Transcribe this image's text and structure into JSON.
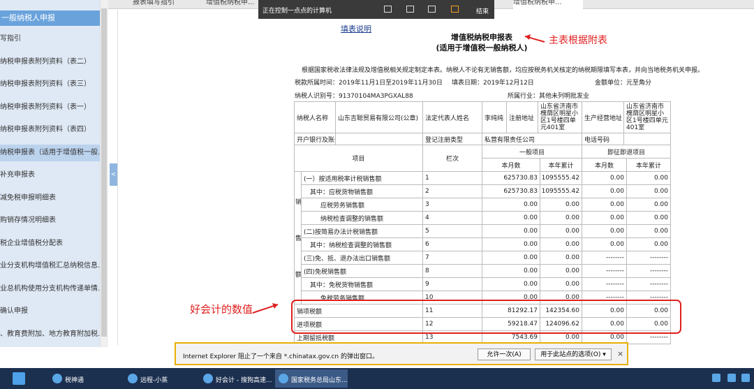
{
  "tabs": [
    "报表填写指引",
    "增值税纳税申...",
    "增值税纳税申..."
  ],
  "toolbar": {
    "status": "正在控制一点点的计算机",
    "end": "结束"
  },
  "sidebar": {
    "header": "一般纳税人申报",
    "items": [
      "写指引",
      "纳税申报表附列资料（表二）",
      "纳税申报表附列资料（表三）",
      "纳税申报表附列资料（表一）",
      "纳税申报表附列资料（表四）",
      "纳税申报表（适用于增值税一般...",
      "补充申报表",
      "减免税申报明细表",
      "购销存情况明细表",
      "税企业增值税分配表",
      "业分支机构增值税汇总纳税信息...",
      "业总机构使用分支机构传递单情...",
      "确认申报",
      "、教育费附加、地方教育附加税..."
    ],
    "collapse": "<"
  },
  "form": {
    "link": "填表说明",
    "title": "增值税纳税申报表",
    "subtitle": "(适用于增值税一般纳税人)",
    "note": "根据国家税收法律法规及增值税相关规定制定本表。纳税人不论有无销售额，均应按税务机关核定的纳税期限填写本表，并向当地税务机关申报。",
    "period": "税款所属时间：2019年11月1日至2019年11月30日",
    "fill_date": "填表日期：2019年12月12日",
    "unit": "金额单位：元至角分",
    "taxpayer_id": "纳税人识别号：91370104MA3PGXAL88",
    "industry": "所属行业：其他未列明批发业"
  },
  "info": [
    [
      "纳税人名称",
      "山东吉聪贸易有限公司(公章)",
      "法定代表人姓名",
      "李纯纯",
      "注册地址",
      "山东省济南市槐荫区明星小区1号楼四单元401室",
      "生产经营地址",
      "山东省济南市槐荫区明星小区1号楼四单元401室"
    ],
    [
      "开户银行及账号",
      "登记注册类型",
      "私营有限责任公司",
      "电话号码"
    ]
  ],
  "table": {
    "head": {
      "item": "项目",
      "no": "栏次",
      "general": "一般项目",
      "instant": "即征即退项目",
      "month": "本月数",
      "year": "本年累计"
    },
    "side_label": [
      "销",
      "售",
      "额"
    ],
    "rows": [
      {
        "item": "(一）按适用税率计税销售额",
        "no": "1",
        "cells": [
          "625730.83",
          "1095555.42",
          "0.00",
          "0.00"
        ]
      },
      {
        "item": "其中：应税货物销售额",
        "no": "2",
        "cells": [
          "625730.83",
          "1095555.42",
          "0.00",
          "0.00"
        ]
      },
      {
        "item": "应税劳务销售额",
        "no": "3",
        "cells": [
          "0.00",
          "0.00",
          "0.00",
          "0.00"
        ]
      },
      {
        "item": "纳税检查调整的销售额",
        "no": "4",
        "cells": [
          "0.00",
          "0.00",
          "0.00",
          "0.00"
        ]
      },
      {
        "item": "(二)按简易办法计税销售额",
        "no": "5",
        "cells": [
          "0.00",
          "0.00",
          "0.00",
          "0.00"
        ]
      },
      {
        "item": "其中：纳税检查调整的销售额",
        "no": "6",
        "cells": [
          "0.00",
          "0.00",
          "0.00",
          "0.00"
        ]
      },
      {
        "item": "(三)免、抵、退办法出口销售额",
        "no": "7",
        "cells": [
          "0.00",
          "0.00",
          "--------",
          "--------"
        ]
      },
      {
        "item": "(四)免税销售额",
        "no": "8",
        "cells": [
          "0.00",
          "0.00",
          "--------",
          "--------"
        ]
      },
      {
        "item": "其中：免税货物销售额",
        "no": "9",
        "cells": [
          "0.00",
          "0.00",
          "--------",
          "--------"
        ]
      },
      {
        "item": "免税劳务销售额",
        "no": "10",
        "cells": [
          "0.00",
          "0.00",
          "--------",
          "--------"
        ]
      },
      {
        "item": "销项税额",
        "no": "11",
        "cells": [
          "81292.17",
          "142354.60",
          "0.00",
          "0.00"
        ]
      },
      {
        "item": "进项税额",
        "no": "12",
        "cells": [
          "59218.47",
          "124096.62",
          "0.00",
          "0.00"
        ]
      },
      {
        "item": "上期留抵税额",
        "no": "13",
        "cells": [
          "7543.69",
          "0.00",
          "0.00",
          "--------"
        ]
      }
    ]
  },
  "annotations": {
    "main": "主表根据附表",
    "values": "好会计的数值"
  },
  "popup": {
    "message": "Internet Explorer 阻止了一个来自 *.chinatax.gov.cn 的弹出窗口。",
    "allow": "允许一次(A)",
    "options": "用于此站点的选项(O) ▾",
    "close": "×"
  },
  "taskbar": [
    "税神通",
    "远程-小蒸",
    "好会计 - 搜狗高速...",
    "国家税务总局山东..."
  ]
}
